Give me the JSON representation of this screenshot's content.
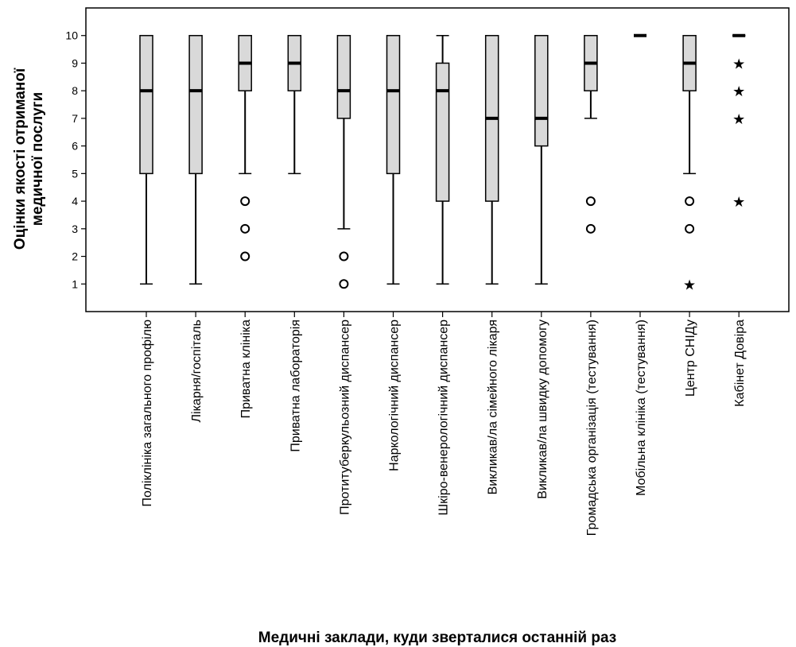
{
  "chart_data": {
    "type": "boxplot",
    "ylabel_line1": "Оцінки якості отриманої",
    "ylabel_line2": "медичної послуги",
    "xlabel": "Медичні заклади, куди зверталися останній раз",
    "ylim": [
      0,
      11
    ],
    "yticks": [
      1,
      2,
      3,
      4,
      5,
      6,
      7,
      8,
      9,
      10
    ],
    "colors": {
      "box_fill": "#d9d9d9",
      "stroke": "#000000"
    },
    "categories": [
      "Поліклініка загального профілю",
      "Лікарня/госпіталь",
      "Приватна клініка",
      "Приватна лабораторія",
      "Протитуберкульозний диспансер",
      "Наркологічний диспансер",
      "Шкіро-венерологічний диспансер",
      "Викликав/ла сімейного лікаря",
      "Викликав/ла швидку допомогу",
      "Громадська організація (тестування)",
      "Мобільна клініка (тестування)",
      "Центр СНІДу",
      "Кабінет Довіра"
    ],
    "boxes": [
      {
        "whisker_low": 1,
        "q1": 5,
        "median": 8,
        "q3": 10,
        "whisker_high": 10,
        "outliers": [],
        "extremes": []
      },
      {
        "whisker_low": 1,
        "q1": 5,
        "median": 8,
        "q3": 10,
        "whisker_high": 10,
        "outliers": [],
        "extremes": []
      },
      {
        "whisker_low": 5,
        "q1": 8,
        "median": 9,
        "q3": 10,
        "whisker_high": 10,
        "outliers": [
          4,
          3,
          2
        ],
        "extremes": []
      },
      {
        "whisker_low": 5,
        "q1": 8,
        "median": 9,
        "q3": 10,
        "whisker_high": 10,
        "outliers": [],
        "extremes": []
      },
      {
        "whisker_low": 3,
        "q1": 7,
        "median": 8,
        "q3": 10,
        "whisker_high": 10,
        "outliers": [
          2,
          1
        ],
        "extremes": []
      },
      {
        "whisker_low": 1,
        "q1": 5,
        "median": 8,
        "q3": 10,
        "whisker_high": 10,
        "outliers": [],
        "extremes": []
      },
      {
        "whisker_low": 1,
        "q1": 4,
        "median": 8,
        "q3": 9,
        "whisker_high": 10,
        "outliers": [],
        "extremes": []
      },
      {
        "whisker_low": 1,
        "q1": 4,
        "median": 7,
        "q3": 10,
        "whisker_high": 10,
        "outliers": [],
        "extremes": []
      },
      {
        "whisker_low": 1,
        "q1": 6,
        "median": 7,
        "q3": 10,
        "whisker_high": 10,
        "outliers": [],
        "extremes": []
      },
      {
        "whisker_low": 7,
        "q1": 8,
        "median": 9,
        "q3": 10,
        "whisker_high": 10,
        "outliers": [
          4,
          3
        ],
        "extremes": []
      },
      {
        "whisker_low": 10,
        "q1": 10,
        "median": 10,
        "q3": 10,
        "whisker_high": 10,
        "outliers": [],
        "extremes": []
      },
      {
        "whisker_low": 5,
        "q1": 8,
        "median": 9,
        "q3": 10,
        "whisker_high": 10,
        "outliers": [
          4,
          3
        ],
        "extremes": [
          1
        ]
      },
      {
        "whisker_low": 10,
        "q1": 10,
        "median": 10,
        "q3": 10,
        "whisker_high": 10,
        "outliers": [],
        "extremes": [
          9,
          8,
          7,
          4
        ]
      }
    ]
  }
}
